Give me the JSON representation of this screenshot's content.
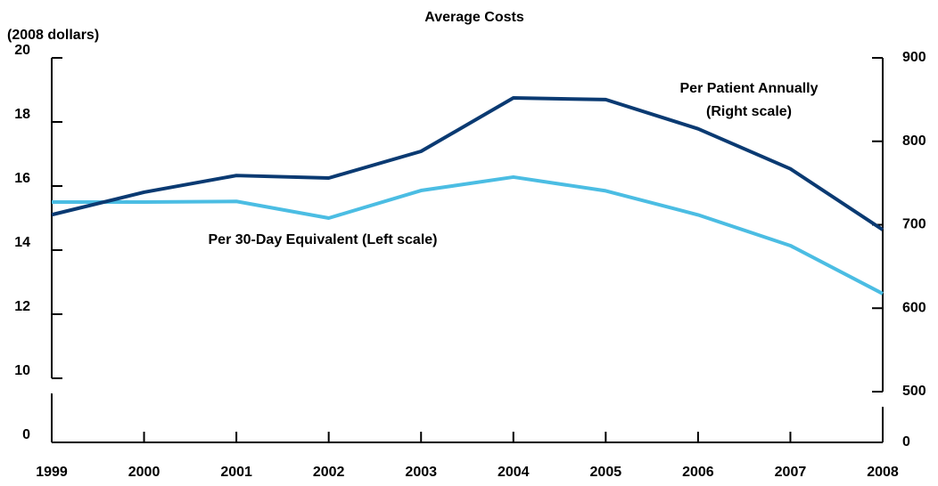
{
  "chart_data": {
    "type": "line",
    "title": "Average Costs",
    "ylabel": "(2008 dollars)",
    "x": [
      1999,
      2000,
      2001,
      2002,
      2003,
      2004,
      2005,
      2006,
      2007,
      2008
    ],
    "xlim": [
      1999,
      2008
    ],
    "xticks": [
      1999,
      2000,
      2001,
      2002,
      2003,
      2004,
      2005,
      2006,
      2007,
      2008
    ],
    "ylim": [
      10,
      20
    ],
    "yticks": [
      0,
      10,
      12,
      14,
      16,
      18,
      20
    ],
    "y2lim": [
      500,
      900
    ],
    "y2ticks": [
      0,
      500,
      600,
      700,
      800,
      900
    ],
    "axis_break": true,
    "series": [
      {
        "name": "Per 30-Day Equivalent (Left scale)",
        "color": "#4bbde3",
        "values": [
          15.5,
          15.5,
          15.52,
          15.0,
          15.86,
          16.28,
          15.85,
          15.1,
          14.14,
          12.64
        ]
      },
      {
        "name": [
          "Per Patient Annually",
          "(Right scale)"
        ],
        "color": "#0a3a72",
        "axis": "y2",
        "values": [
          712,
          739,
          759,
          756,
          788,
          852,
          850,
          815,
          767,
          694
        ]
      }
    ]
  }
}
